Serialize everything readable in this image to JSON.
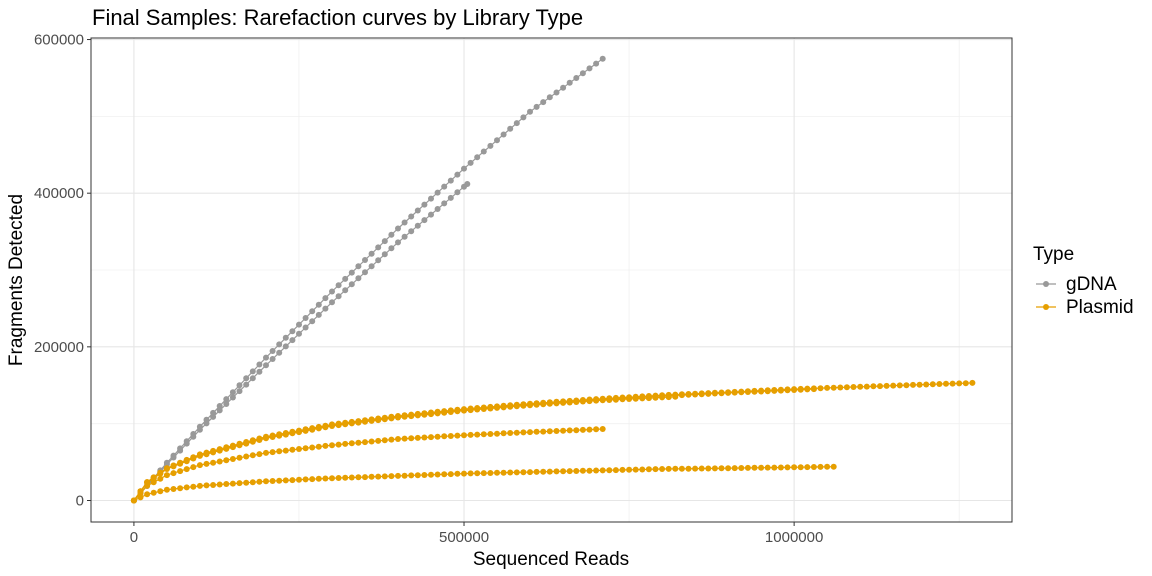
{
  "chart_data": {
    "type": "line",
    "title": "Final Samples: Rarefaction curves by Library Type",
    "xlabel": "Sequenced Reads",
    "ylabel": "Fragments Detected",
    "xlim": [
      -65000,
      1330000
    ],
    "ylim": [
      -28000,
      602000
    ],
    "x_ticks": [
      0,
      500000,
      1000000
    ],
    "x_tick_labels": [
      "0",
      "500000",
      "1000000"
    ],
    "y_ticks": [
      0,
      200000,
      400000,
      600000
    ],
    "y_tick_labels": [
      "0",
      "200000",
      "400000",
      "600000"
    ],
    "grid": true,
    "legend": {
      "title": "Type",
      "position": "right",
      "entries": [
        {
          "label": "gDNA",
          "color": "#999999"
        },
        {
          "label": "Plasmid",
          "color": "#E69F00"
        }
      ]
    },
    "series": [
      {
        "name": "gDNA",
        "color": "#999999",
        "max_x": 710000,
        "points": [
          [
            0,
            0
          ],
          [
            50000,
            49000
          ],
          [
            100000,
            96000
          ],
          [
            200000,
            186000
          ],
          [
            300000,
            272000
          ],
          [
            400000,
            354000
          ],
          [
            500000,
            432000
          ],
          [
            600000,
            506000
          ],
          [
            710000,
            575000
          ]
        ]
      },
      {
        "name": "gDNA",
        "color": "#999999",
        "max_x": 505000,
        "points": [
          [
            0,
            0
          ],
          [
            50000,
            47000
          ],
          [
            100000,
            92000
          ],
          [
            200000,
            176000
          ],
          [
            300000,
            258000
          ],
          [
            400000,
            336000
          ],
          [
            505000,
            412000
          ]
        ]
      },
      {
        "name": "Plasmid",
        "color": "#E69F00",
        "max_x": 1270000,
        "points": [
          [
            0,
            0
          ],
          [
            20000,
            24000
          ],
          [
            50000,
            42000
          ],
          [
            100000,
            60000
          ],
          [
            200000,
            83000
          ],
          [
            300000,
            99000
          ],
          [
            400000,
            110000
          ],
          [
            500000,
            119000
          ],
          [
            600000,
            126000
          ],
          [
            700000,
            132000
          ],
          [
            800000,
            137000
          ],
          [
            900000,
            141000
          ],
          [
            1000000,
            145000
          ],
          [
            1100000,
            148000
          ],
          [
            1200000,
            151000
          ],
          [
            1270000,
            153000
          ]
        ]
      },
      {
        "name": "Plasmid",
        "color": "#E69F00",
        "max_x": 1030000,
        "points": [
          [
            0,
            0
          ],
          [
            20000,
            24000
          ],
          [
            50000,
            42000
          ],
          [
            100000,
            59000
          ],
          [
            200000,
            82000
          ],
          [
            300000,
            98000
          ],
          [
            400000,
            109000
          ],
          [
            500000,
            118000
          ],
          [
            600000,
            125000
          ],
          [
            700000,
            131000
          ],
          [
            800000,
            136000
          ],
          [
            900000,
            140000
          ],
          [
            1030000,
            145000
          ]
        ]
      },
      {
        "name": "Plasmid",
        "color": "#E69F00",
        "max_x": 820000,
        "points": [
          [
            0,
            0
          ],
          [
            20000,
            23000
          ],
          [
            50000,
            41000
          ],
          [
            100000,
            58000
          ],
          [
            200000,
            81000
          ],
          [
            300000,
            97000
          ],
          [
            400000,
            108000
          ],
          [
            500000,
            117000
          ],
          [
            600000,
            124000
          ],
          [
            700000,
            130000
          ],
          [
            820000,
            135000
          ]
        ]
      },
      {
        "name": "Plasmid",
        "color": "#E69F00",
        "max_x": 710000,
        "points": [
          [
            0,
            0
          ],
          [
            20000,
            19000
          ],
          [
            50000,
            33000
          ],
          [
            100000,
            46000
          ],
          [
            200000,
            62000
          ],
          [
            300000,
            72000
          ],
          [
            400000,
            80000
          ],
          [
            500000,
            85000
          ],
          [
            600000,
            89000
          ],
          [
            710000,
            93000
          ]
        ]
      },
      {
        "name": "Plasmid",
        "color": "#E69F00",
        "max_x": 1060000,
        "points": [
          [
            0,
            0
          ],
          [
            20000,
            8000
          ],
          [
            50000,
            14000
          ],
          [
            100000,
            19000
          ],
          [
            200000,
            25000
          ],
          [
            300000,
            29000
          ],
          [
            400000,
            32000
          ],
          [
            500000,
            35000
          ],
          [
            600000,
            37000
          ],
          [
            700000,
            39000
          ],
          [
            800000,
            41000
          ],
          [
            900000,
            42000
          ],
          [
            1060000,
            44000
          ]
        ]
      }
    ]
  }
}
